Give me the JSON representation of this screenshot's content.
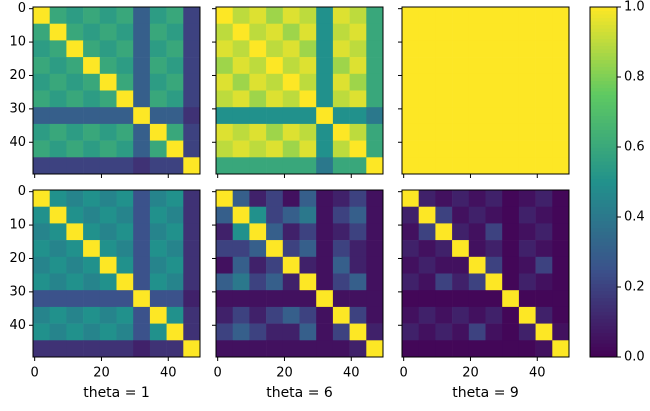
{
  "chart_data": {
    "type": "heatmap",
    "colormap": "viridis",
    "bins": [
      -0.5,
      4.5,
      9.5,
      14.5,
      19.5,
      24.5,
      29.5,
      34.5,
      39.5,
      44.5,
      49.5
    ],
    "xlim": [
      -0.5,
      49.5
    ],
    "ylim": [
      -0.5,
      49.5
    ],
    "y_inverted": true,
    "xticks": [
      0,
      20,
      40
    ],
    "yticks": [
      0,
      10,
      20,
      30,
      40
    ],
    "zlim": [
      0,
      1
    ],
    "zticks": [
      {
        "value": 0,
        "label": "0.0"
      },
      {
        "value": 0.2,
        "label": "0.2"
      },
      {
        "value": 0.4,
        "label": "0.4"
      },
      {
        "value": 0.6,
        "label": "0.6"
      },
      {
        "value": 0.8,
        "label": "0.8"
      },
      {
        "value": 1,
        "label": "1.0"
      }
    ],
    "panels": [
      {
        "z": [
          [
            1,
            0.6,
            0.55,
            0.6,
            0.55,
            0.6,
            0.3,
            0.55,
            0.6,
            0.2
          ],
          [
            0.6,
            1,
            0.6,
            0.55,
            0.6,
            0.55,
            0.3,
            0.6,
            0.55,
            0.2
          ],
          [
            0.55,
            0.6,
            1,
            0.6,
            0.55,
            0.6,
            0.3,
            0.55,
            0.6,
            0.2
          ],
          [
            0.6,
            0.55,
            0.6,
            1,
            0.6,
            0.55,
            0.3,
            0.6,
            0.55,
            0.2
          ],
          [
            0.55,
            0.6,
            0.55,
            0.6,
            1,
            0.6,
            0.3,
            0.55,
            0.6,
            0.2
          ],
          [
            0.6,
            0.55,
            0.6,
            0.55,
            0.6,
            1,
            0.3,
            0.6,
            0.55,
            0.2
          ],
          [
            0.3,
            0.3,
            0.3,
            0.3,
            0.3,
            0.3,
            1,
            0.3,
            0.3,
            0.15
          ],
          [
            0.55,
            0.6,
            0.55,
            0.6,
            0.55,
            0.6,
            0.3,
            1,
            0.6,
            0.2
          ],
          [
            0.6,
            0.55,
            0.6,
            0.55,
            0.6,
            0.55,
            0.3,
            0.6,
            1,
            0.2
          ],
          [
            0.2,
            0.2,
            0.2,
            0.2,
            0.2,
            0.2,
            0.15,
            0.2,
            0.2,
            1
          ]
        ]
      },
      {
        "z": [
          [
            1,
            0.9,
            0.95,
            0.85,
            0.95,
            0.9,
            0.5,
            0.95,
            0.9,
            0.6
          ],
          [
            0.9,
            1,
            0.9,
            0.95,
            0.85,
            0.95,
            0.5,
            0.9,
            0.95,
            0.6
          ],
          [
            0.95,
            0.9,
            1,
            0.9,
            0.95,
            0.85,
            0.5,
            0.95,
            0.9,
            0.6
          ],
          [
            0.85,
            0.95,
            0.9,
            1,
            0.9,
            0.95,
            0.5,
            0.85,
            0.95,
            0.6
          ],
          [
            0.95,
            0.85,
            0.95,
            0.9,
            1,
            0.9,
            0.5,
            0.95,
            0.85,
            0.6
          ],
          [
            0.9,
            0.95,
            0.85,
            0.95,
            0.9,
            1,
            0.5,
            0.9,
            0.95,
            0.6
          ],
          [
            0.5,
            0.5,
            0.5,
            0.5,
            0.5,
            0.5,
            1,
            0.5,
            0.5,
            0.4
          ],
          [
            0.95,
            0.9,
            0.95,
            0.85,
            0.95,
            0.9,
            0.5,
            1,
            0.9,
            0.6
          ],
          [
            0.9,
            0.95,
            0.9,
            0.95,
            0.85,
            0.95,
            0.5,
            0.9,
            1,
            0.6
          ],
          [
            0.6,
            0.6,
            0.6,
            0.6,
            0.6,
            0.6,
            0.4,
            0.6,
            0.6,
            1
          ]
        ]
      },
      {
        "z": [
          [
            1,
            1,
            1,
            1,
            1,
            1,
            1,
            1,
            1,
            1
          ],
          [
            1,
            1,
            1,
            1,
            1,
            1,
            1,
            1,
            1,
            1
          ],
          [
            1,
            1,
            1,
            1,
            1,
            1,
            1,
            1,
            1,
            1
          ],
          [
            1,
            1,
            1,
            1,
            1,
            1,
            1,
            1,
            1,
            1
          ],
          [
            1,
            1,
            1,
            1,
            1,
            1,
            1,
            1,
            1,
            1
          ],
          [
            1,
            1,
            1,
            1,
            1,
            1,
            1,
            1,
            1,
            1
          ],
          [
            1,
            1,
            1,
            1,
            1,
            1,
            1,
            1,
            1,
            1
          ],
          [
            1,
            1,
            1,
            1,
            1,
            1,
            1,
            1,
            1,
            1
          ],
          [
            1,
            1,
            1,
            1,
            1,
            1,
            1,
            1,
            1,
            1
          ],
          [
            1,
            1,
            1,
            1,
            1,
            1,
            1,
            1,
            1,
            1
          ]
        ]
      },
      {
        "xlabel": "theta = 1",
        "z": [
          [
            1,
            0.5,
            0.45,
            0.5,
            0.45,
            0.5,
            0.25,
            0.45,
            0.5,
            0.15
          ],
          [
            0.5,
            1,
            0.5,
            0.45,
            0.5,
            0.45,
            0.25,
            0.5,
            0.45,
            0.15
          ],
          [
            0.45,
            0.5,
            1,
            0.5,
            0.45,
            0.5,
            0.25,
            0.45,
            0.5,
            0.15
          ],
          [
            0.5,
            0.45,
            0.5,
            1,
            0.5,
            0.45,
            0.25,
            0.5,
            0.45,
            0.15
          ],
          [
            0.45,
            0.5,
            0.45,
            0.5,
            1,
            0.5,
            0.25,
            0.45,
            0.5,
            0.15
          ],
          [
            0.5,
            0.45,
            0.5,
            0.45,
            0.5,
            1,
            0.25,
            0.5,
            0.45,
            0.15
          ],
          [
            0.25,
            0.25,
            0.25,
            0.25,
            0.25,
            0.25,
            1,
            0.25,
            0.25,
            0.1
          ],
          [
            0.45,
            0.5,
            0.45,
            0.5,
            0.45,
            0.5,
            0.25,
            1,
            0.5,
            0.15
          ],
          [
            0.5,
            0.45,
            0.5,
            0.45,
            0.5,
            0.45,
            0.25,
            0.5,
            1,
            0.15
          ],
          [
            0.15,
            0.15,
            0.15,
            0.15,
            0.15,
            0.15,
            0.1,
            0.15,
            0.15,
            1
          ]
        ]
      },
      {
        "xlabel": "theta = 6",
        "z": [
          [
            1,
            0.3,
            0.1,
            0.2,
            0.05,
            0.3,
            0.05,
            0.1,
            0.2,
            0.05
          ],
          [
            0.3,
            1,
            0.5,
            0.2,
            0.3,
            0.4,
            0.05,
            0.2,
            0.3,
            0.05
          ],
          [
            0.1,
            0.5,
            1,
            0.3,
            0.1,
            0.2,
            0.05,
            0.1,
            0.2,
            0.05
          ],
          [
            0.2,
            0.2,
            0.3,
            1,
            0.2,
            0.3,
            0.05,
            0.2,
            0.1,
            0.05
          ],
          [
            0.05,
            0.3,
            0.1,
            0.2,
            1,
            0.1,
            0.05,
            0.3,
            0.1,
            0.05
          ],
          [
            0.3,
            0.4,
            0.2,
            0.3,
            0.1,
            1,
            0.05,
            0.2,
            0.3,
            0.05
          ],
          [
            0.05,
            0.05,
            0.05,
            0.05,
            0.05,
            0.05,
            1,
            0.05,
            0.05,
            0.05
          ],
          [
            0.1,
            0.2,
            0.1,
            0.2,
            0.3,
            0.2,
            0.05,
            1,
            0.2,
            0.05
          ],
          [
            0.2,
            0.3,
            0.2,
            0.1,
            0.1,
            0.3,
            0.05,
            0.2,
            1,
            0.1
          ],
          [
            0.05,
            0.05,
            0.05,
            0.05,
            0.05,
            0.05,
            0.05,
            0.05,
            0.1,
            1
          ]
        ]
      },
      {
        "xlabel": "theta = 9",
        "z": [
          [
            1,
            0.1,
            0.05,
            0.1,
            0.05,
            0.1,
            0.02,
            0.05,
            0.1,
            0.02
          ],
          [
            0.1,
            1,
            0.2,
            0.05,
            0.1,
            0.05,
            0.02,
            0.1,
            0.05,
            0.02
          ],
          [
            0.05,
            0.2,
            1,
            0.1,
            0.05,
            0.2,
            0.02,
            0.05,
            0.1,
            0.02
          ],
          [
            0.1,
            0.05,
            0.1,
            1,
            0.05,
            0.1,
            0.02,
            0.1,
            0.05,
            0.02
          ],
          [
            0.05,
            0.1,
            0.05,
            0.05,
            1,
            0.2,
            0.02,
            0.05,
            0.2,
            0.02
          ],
          [
            0.1,
            0.05,
            0.2,
            0.1,
            0.2,
            1,
            0.02,
            0.1,
            0.05,
            0.02
          ],
          [
            0.02,
            0.02,
            0.02,
            0.02,
            0.02,
            0.02,
            1,
            0.02,
            0.02,
            0.02
          ],
          [
            0.05,
            0.1,
            0.05,
            0.1,
            0.05,
            0.1,
            0.02,
            1,
            0.1,
            0.02
          ],
          [
            0.1,
            0.05,
            0.1,
            0.05,
            0.2,
            0.05,
            0.02,
            0.1,
            1,
            0.05
          ],
          [
            0.02,
            0.02,
            0.02,
            0.02,
            0.02,
            0.02,
            0.02,
            0.02,
            0.05,
            1
          ]
        ]
      }
    ]
  }
}
